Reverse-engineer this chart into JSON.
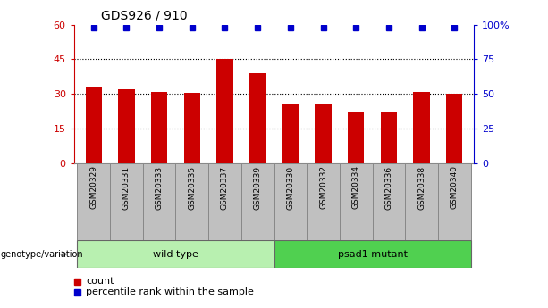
{
  "title": "GDS926 / 910",
  "categories": [
    "GSM20329",
    "GSM20331",
    "GSM20333",
    "GSM20335",
    "GSM20337",
    "GSM20339",
    "GSM20330",
    "GSM20332",
    "GSM20334",
    "GSM20336",
    "GSM20338",
    "GSM20340"
  ],
  "counts": [
    33,
    32,
    31,
    30.5,
    45,
    39,
    25.5,
    25.5,
    22,
    22,
    31,
    30
  ],
  "percentile_ranks": [
    100,
    100,
    100,
    100,
    100,
    100,
    100,
    100,
    100,
    100,
    100,
    100
  ],
  "groups": [
    {
      "label": "wild type",
      "start": 0,
      "end": 6,
      "color": "#b8f0b0"
    },
    {
      "label": "psad1 mutant",
      "start": 6,
      "end": 12,
      "color": "#50d050"
    }
  ],
  "bar_color": "#cc0000",
  "dot_color": "#0000cc",
  "ylim_left": [
    0,
    60
  ],
  "ylim_right": [
    0,
    100
  ],
  "yticks_left": [
    0,
    15,
    30,
    45,
    60
  ],
  "yticks_right": [
    0,
    25,
    50,
    75,
    100
  ],
  "ytick_labels_left": [
    "0",
    "15",
    "30",
    "45",
    "60"
  ],
  "ytick_labels_right": [
    "0",
    "25",
    "50",
    "75",
    "100%"
  ],
  "gridlines": [
    15,
    30,
    45
  ],
  "legend_count_label": "count",
  "legend_pct_label": "percentile rank within the sample",
  "genotype_label": "genotype/variation",
  "tick_bg_color": "#c0c0c0",
  "tick_border_color": "#888888"
}
